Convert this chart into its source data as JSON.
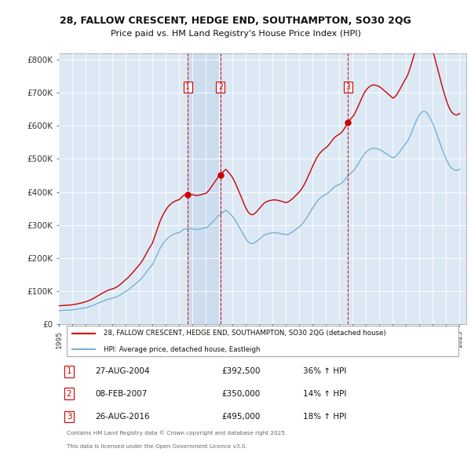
{
  "title": "28, FALLOW CRESCENT, HEDGE END, SOUTHAMPTON, SO30 2QG",
  "subtitle": "Price paid vs. HM Land Registry's House Price Index (HPI)",
  "footer1": "Contains HM Land Registry data © Crown copyright and database right 2025.",
  "footer2": "This data is licensed under the Open Government Licence v3.0.",
  "legend_label_red": "28, FALLOW CRESCENT, HEDGE END, SOUTHAMPTON, SO30 2QG (detached house)",
  "legend_label_blue": "HPI: Average price, detached house, Eastleigh",
  "sales": [
    {
      "label": "1",
      "date": "27-AUG-2004",
      "price": 392500,
      "pct": "36%",
      "dir": "↑",
      "year": 2004.65
    },
    {
      "label": "2",
      "date": "08-FEB-2007",
      "price": 350000,
      "pct": "14%",
      "dir": "↑",
      "year": 2007.1
    },
    {
      "label": "3",
      "date": "26-AUG-2016",
      "price": 495000,
      "pct": "18%",
      "dir": "↑",
      "year": 2016.65
    }
  ],
  "plot_bg_color": "#dce9f5",
  "shaded_region_color": "#c8d8ee",
  "red_color": "#cc0000",
  "blue_color": "#7ab0d4",
  "grid_color": "#ffffff",
  "ylim": [
    0,
    820000
  ],
  "yticks": [
    0,
    100000,
    200000,
    300000,
    400000,
    500000,
    600000,
    700000,
    800000
  ],
  "ytick_labels": [
    "£0",
    "£100K",
    "£200K",
    "£300K",
    "£400K",
    "£500K",
    "£600K",
    "£700K",
    "£800K"
  ],
  "hpi_index": [
    56.7,
    57.1,
    57.4,
    57.6,
    57.9,
    58.1,
    58.3,
    58.5,
    58.7,
    58.9,
    59.1,
    59.3,
    60.0,
    60.5,
    61.0,
    61.5,
    62.2,
    63.0,
    63.8,
    64.6,
    65.5,
    66.4,
    67.3,
    68.2,
    69.2,
    70.3,
    71.5,
    72.9,
    74.4,
    76.0,
    77.7,
    79.5,
    81.5,
    83.6,
    85.7,
    87.8,
    89.9,
    91.9,
    93.9,
    95.8,
    97.7,
    99.5,
    101.3,
    103.0,
    104.7,
    106.3,
    107.2,
    108.0,
    109.0,
    110.3,
    111.7,
    113.4,
    115.3,
    117.5,
    120.0,
    122.8,
    125.7,
    128.8,
    132.0,
    135.3,
    138.0,
    140.8,
    144.0,
    147.5,
    151.2,
    155.0,
    159.0,
    163.0,
    167.0,
    171.0,
    175.0,
    179.0,
    183.0,
    187.5,
    192.0,
    197.0,
    203.0,
    209.5,
    216.0,
    223.0,
    229.0,
    235.0,
    240.5,
    246.0,
    251.5,
    261.0,
    271.0,
    281.0,
    291.0,
    301.0,
    311.0,
    321.0,
    328.5,
    336.0,
    342.5,
    349.0,
    354.5,
    360.0,
    364.5,
    368.5,
    372.0,
    375.0,
    377.5,
    380.0,
    382.0,
    383.5,
    385.0,
    386.0,
    387.0,
    390.0,
    393.5,
    397.0,
    400.0,
    401.5,
    403.0,
    403.5,
    403.5,
    403.5,
    403.5,
    403.5,
    403.0,
    402.0,
    401.0,
    400.0,
    400.0,
    400.5,
    401.0,
    402.0,
    403.0,
    404.0,
    405.0,
    406.0,
    407.0,
    409.5,
    413.0,
    417.0,
    422.0,
    427.0,
    432.0,
    437.0,
    442.0,
    447.0,
    452.0,
    457.0,
    461.0,
    464.0,
    467.0,
    471.0,
    475.5,
    478.5,
    481.5,
    478.0,
    474.0,
    470.0,
    465.5,
    461.0,
    456.0,
    449.5,
    442.5,
    435.0,
    427.0,
    419.0,
    410.5,
    402.0,
    393.5,
    385.0,
    377.0,
    369.0,
    361.0,
    354.5,
    349.0,
    345.0,
    342.0,
    340.5,
    340.5,
    342.0,
    344.5,
    347.5,
    351.0,
    355.0,
    359.0,
    363.0,
    367.0,
    371.0,
    375.0,
    377.5,
    380.0,
    381.5,
    382.5,
    383.5,
    384.5,
    385.5,
    386.0,
    386.5,
    386.5,
    386.0,
    385.5,
    385.0,
    384.0,
    383.0,
    382.0,
    381.0,
    380.0,
    379.0,
    378.0,
    379.0,
    380.5,
    382.5,
    385.0,
    387.5,
    390.5,
    394.0,
    397.5,
    401.0,
    404.5,
    408.0,
    411.5,
    415.5,
    420.0,
    425.5,
    431.5,
    438.0,
    445.0,
    452.5,
    460.0,
    468.0,
    476.0,
    484.0,
    491.5,
    499.0,
    506.0,
    513.0,
    519.5,
    525.0,
    530.0,
    534.0,
    537.5,
    541.0,
    544.0,
    546.5,
    549.0,
    552.0,
    556.0,
    560.0,
    564.5,
    569.0,
    573.5,
    578.0,
    581.5,
    584.5,
    587.0,
    589.0,
    591.0,
    593.5,
    597.0,
    601.0,
    606.0,
    611.5,
    617.0,
    623.0,
    628.5,
    633.5,
    638.0,
    642.0,
    645.5,
    650.5,
    656.5,
    663.5,
    671.0,
    679.0,
    687.0,
    695.0,
    702.5,
    710.0,
    717.0,
    723.0,
    728.0,
    732.5,
    736.0,
    739.0,
    741.5,
    743.0,
    744.0,
    744.0,
    744.0,
    743.0,
    742.0,
    740.5,
    738.5,
    736.0,
    733.5,
    730.5,
    727.5,
    724.5,
    721.5,
    718.5,
    715.5,
    712.5,
    709.5,
    706.5,
    703.5,
    705.0,
    708.0,
    712.0,
    717.0,
    722.5,
    728.5,
    735.0,
    741.5,
    748.0,
    754.5,
    760.5,
    766.0,
    773.0,
    781.5,
    791.0,
    801.5,
    813.0,
    825.0,
    837.0,
    848.5,
    859.5,
    869.5,
    878.5,
    886.0,
    892.0,
    896.5,
    899.5,
    900.5,
    899.5,
    896.5,
    891.5,
    885.0,
    877.0,
    868.0,
    858.5,
    848.0,
    836.5,
    824.5,
    811.5,
    798.0,
    784.5,
    771.0,
    757.5,
    744.5,
    732.0,
    720.0,
    708.5,
    697.5,
    687.5,
    678.5,
    671.0,
    664.5,
    659.5,
    655.5,
    653.0,
    651.5,
    651.0,
    651.5,
    653.0,
    655.5
  ]
}
